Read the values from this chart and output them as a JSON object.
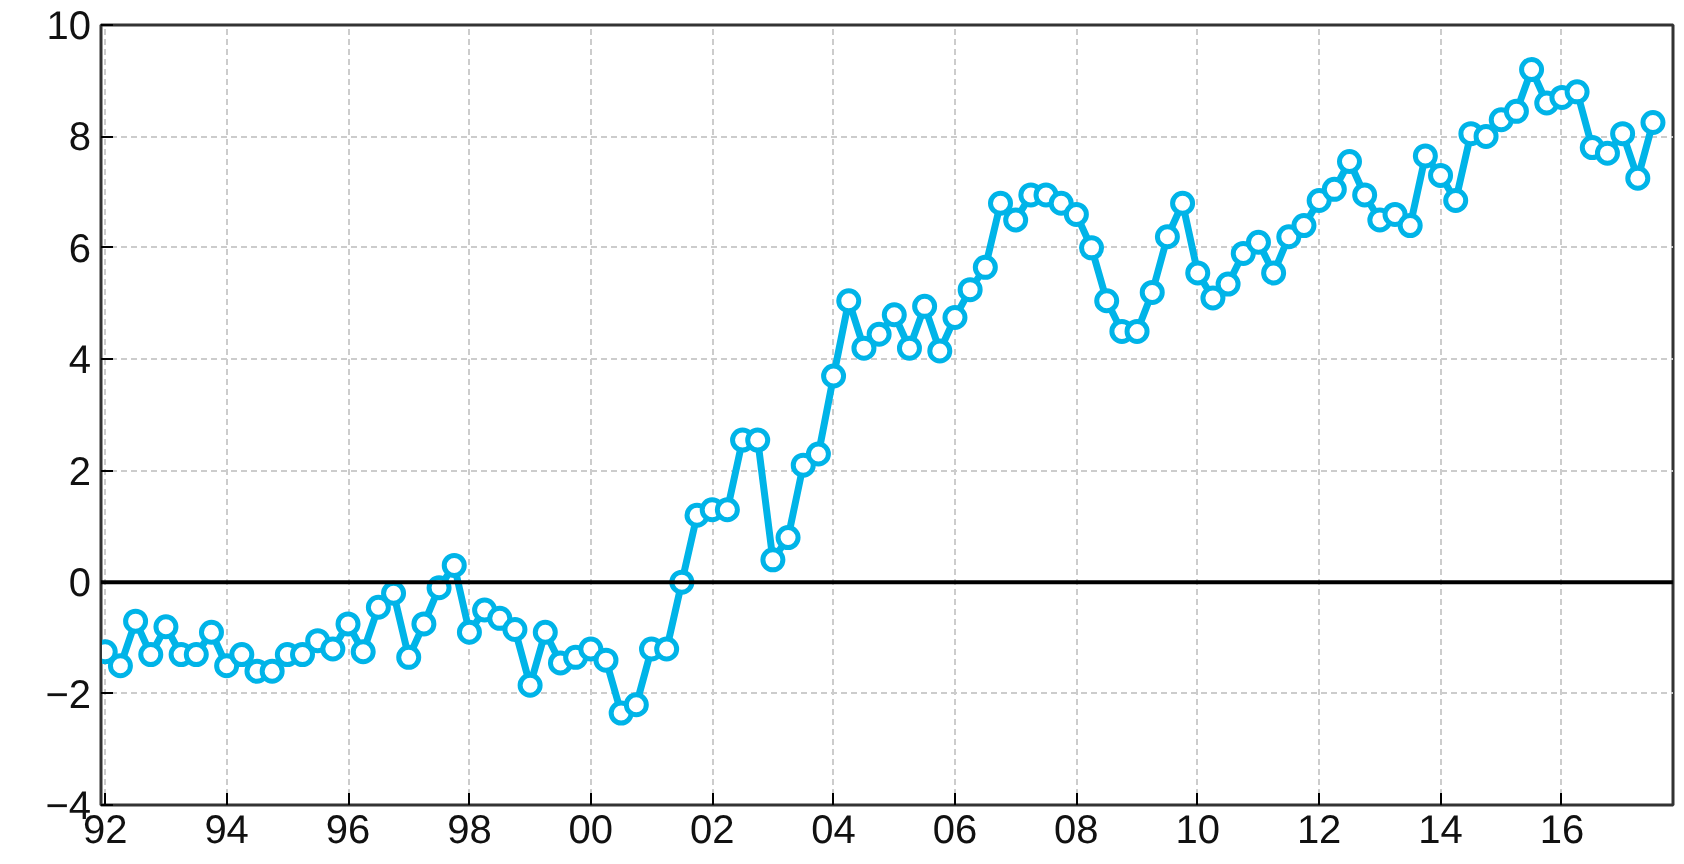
{
  "chart_data": {
    "type": "line",
    "x": [
      1992.0,
      1992.25,
      1992.5,
      1992.75,
      1993.0,
      1993.25,
      1993.5,
      1993.75,
      1994.0,
      1994.25,
      1994.5,
      1994.75,
      1995.0,
      1995.25,
      1995.5,
      1995.75,
      1996.0,
      1996.25,
      1996.5,
      1996.75,
      1997.0,
      1997.25,
      1997.5,
      1997.75,
      1998.0,
      1998.25,
      1998.5,
      1998.75,
      1999.0,
      1999.25,
      1999.5,
      1999.75,
      2000.0,
      2000.25,
      2000.5,
      2000.75,
      2001.0,
      2001.25,
      2001.5,
      2001.75,
      2002.0,
      2002.25,
      2002.5,
      2002.75,
      2003.0,
      2003.25,
      2003.5,
      2003.75,
      2004.0,
      2004.25,
      2004.5,
      2004.75,
      2005.0,
      2005.25,
      2005.5,
      2005.75,
      2006.0,
      2006.25,
      2006.5,
      2006.75,
      2007.0,
      2007.25,
      2007.5,
      2007.75,
      2008.0,
      2008.25,
      2008.5,
      2008.75,
      2009.0,
      2009.25,
      2009.5,
      2009.75,
      2010.0,
      2010.25,
      2010.5,
      2010.75,
      2011.0,
      2011.25,
      2011.5,
      2011.75,
      2012.0,
      2012.25,
      2012.5,
      2012.75,
      2013.0,
      2013.25,
      2013.5,
      2013.75,
      2014.0,
      2014.25,
      2014.5,
      2014.75,
      2015.0,
      2015.25,
      2015.5,
      2015.75,
      2016.0,
      2016.25,
      2016.5,
      2016.75,
      2017.0,
      2017.25,
      2017.5
    ],
    "series": [
      {
        "color": "#00b4e8",
        "values": [
          -1.25,
          -1.5,
          -0.7,
          -1.3,
          -0.8,
          -1.3,
          -1.3,
          -0.9,
          -1.5,
          -1.3,
          -1.6,
          -1.6,
          -1.3,
          -1.3,
          -1.05,
          -1.2,
          -0.75,
          -1.25,
          -0.45,
          -0.2,
          -1.35,
          -0.75,
          -0.1,
          0.3,
          -0.9,
          -0.5,
          -0.65,
          -0.85,
          -1.85,
          -0.9,
          -1.45,
          -1.35,
          -1.2,
          -1.4,
          -2.35,
          -2.2,
          -1.2,
          -1.2,
          0.0,
          1.2,
          1.3,
          1.3,
          2.55,
          2.55,
          0.4,
          0.8,
          2.1,
          2.3,
          3.7,
          5.05,
          4.2,
          4.45,
          4.8,
          4.2,
          4.95,
          4.15,
          4.75,
          5.25,
          5.65,
          6.8,
          6.5,
          6.95,
          6.95,
          6.8,
          6.6,
          6.0,
          5.05,
          4.5,
          4.5,
          5.2,
          6.2,
          6.8,
          5.55,
          5.1,
          5.35,
          5.9,
          6.1,
          5.55,
          6.2,
          6.4,
          6.85,
          7.05,
          7.55,
          6.95,
          6.5,
          6.6,
          6.4,
          7.65,
          7.3,
          6.85,
          8.05,
          8.0,
          8.3,
          8.45,
          9.2,
          8.6,
          8.7,
          8.8,
          7.8,
          7.7,
          8.05,
          7.25,
          8.25
        ]
      }
    ],
    "xlim": [
      1991.93,
      2017.83
    ],
    "ylim": [
      -4,
      10
    ],
    "xticks": [
      {
        "value": 1992,
        "label": "92"
      },
      {
        "value": 1994,
        "label": "94"
      },
      {
        "value": 1996,
        "label": "96"
      },
      {
        "value": 1998,
        "label": "98"
      },
      {
        "value": 2000,
        "label": "00"
      },
      {
        "value": 2002,
        "label": "02"
      },
      {
        "value": 2004,
        "label": "04"
      },
      {
        "value": 2006,
        "label": "06"
      },
      {
        "value": 2008,
        "label": "08"
      },
      {
        "value": 2010,
        "label": "10"
      },
      {
        "value": 2012,
        "label": "12"
      },
      {
        "value": 2014,
        "label": "14"
      },
      {
        "value": 2016,
        "label": "16"
      }
    ],
    "yticks": [
      -4,
      -2,
      0,
      2,
      4,
      6,
      8,
      10
    ],
    "ref_lines": [
      {
        "axis": "y",
        "value": 0,
        "color": "#000000"
      }
    ],
    "grid": true,
    "marker": "circle",
    "line_style": "solid"
  }
}
